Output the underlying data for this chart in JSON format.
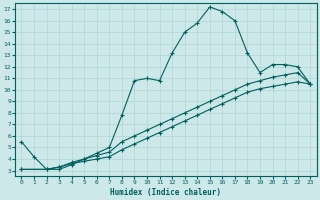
{
  "title": "",
  "xlabel": "Humidex (Indice chaleur)",
  "ylabel": "",
  "xlim": [
    -0.5,
    23.5
  ],
  "ylim": [
    2.5,
    17.5
  ],
  "xticks": [
    0,
    1,
    2,
    3,
    4,
    5,
    6,
    7,
    8,
    9,
    10,
    11,
    12,
    13,
    14,
    15,
    16,
    17,
    18,
    19,
    20,
    21,
    22,
    23
  ],
  "yticks": [
    3,
    4,
    5,
    6,
    7,
    8,
    9,
    10,
    11,
    12,
    13,
    14,
    15,
    16,
    17
  ],
  "bg_color": "#cce8e8",
  "grid_color": "#b0d4d4",
  "line_color": "#006060",
  "line1_x": [
    0,
    1,
    2,
    3,
    4,
    5,
    6,
    7,
    8,
    9,
    10,
    11,
    12,
    13,
    14,
    15,
    16,
    17,
    18,
    19,
    20,
    21,
    22,
    23
  ],
  "line1_y": [
    5.5,
    4.2,
    3.1,
    3.1,
    3.5,
    4.0,
    4.5,
    5.0,
    7.8,
    10.8,
    11.0,
    10.8,
    13.2,
    15.0,
    15.8,
    17.2,
    16.8,
    16.0,
    13.2,
    11.5,
    12.2,
    12.2,
    12.0,
    10.5
  ],
  "line2_x": [
    0,
    2,
    3,
    4,
    5,
    6,
    7,
    8,
    9,
    10,
    11,
    12,
    13,
    14,
    15,
    16,
    17,
    18,
    19,
    20,
    21,
    22,
    23
  ],
  "line2_y": [
    3.1,
    3.1,
    3.3,
    3.7,
    4.0,
    4.3,
    4.6,
    5.5,
    6.0,
    6.5,
    7.0,
    7.5,
    8.0,
    8.5,
    9.0,
    9.5,
    10.0,
    10.5,
    10.8,
    11.1,
    11.3,
    11.5,
    10.5
  ],
  "line3_x": [
    0,
    2,
    3,
    4,
    5,
    6,
    7,
    8,
    9,
    10,
    11,
    12,
    13,
    14,
    15,
    16,
    17,
    18,
    19,
    20,
    21,
    22,
    23
  ],
  "line3_y": [
    3.1,
    3.1,
    3.3,
    3.6,
    3.8,
    4.0,
    4.2,
    4.8,
    5.3,
    5.8,
    6.3,
    6.8,
    7.3,
    7.8,
    8.3,
    8.8,
    9.3,
    9.8,
    10.1,
    10.3,
    10.5,
    10.7,
    10.5
  ]
}
